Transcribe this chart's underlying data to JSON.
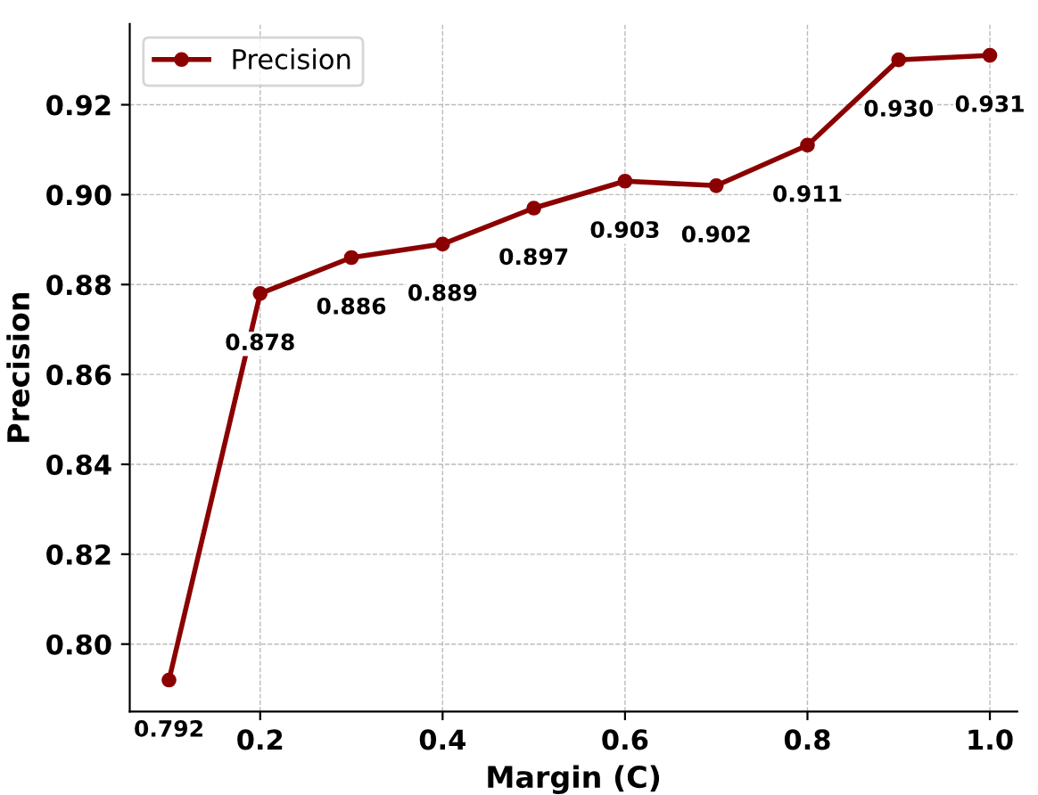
{
  "chart_data": {
    "type": "line",
    "xlabel": "Margin (C)",
    "ylabel": "Precision",
    "x": [
      0.1,
      0.2,
      0.3,
      0.4,
      0.5,
      0.6,
      0.7,
      0.8,
      0.9,
      1.0
    ],
    "series": [
      {
        "name": "Precision",
        "color": "#8b0000",
        "values": [
          0.792,
          0.878,
          0.886,
          0.889,
          0.897,
          0.903,
          0.902,
          0.911,
          0.93,
          0.931
        ],
        "value_labels": [
          "0.792",
          "0.878",
          "0.886",
          "0.889",
          "0.897",
          "0.903",
          "0.902",
          "0.911",
          "0.930",
          "0.931"
        ]
      }
    ],
    "marker": "circle",
    "line_style": "solid",
    "grid": true,
    "legend": "top left",
    "xlim": [
      0.057,
      1.03
    ],
    "ylim": [
      0.785,
      0.938
    ],
    "xticks": [
      0.2,
      0.4,
      0.6,
      0.8,
      {
        "value": 1.0,
        "label": "1.0"
      }
    ],
    "yticks": [
      {
        "value": 0.8,
        "label": "0.80"
      },
      0.82,
      0.84,
      0.86,
      0.88,
      {
        "value": 0.9,
        "label": "0.90"
      },
      0.92
    ]
  }
}
